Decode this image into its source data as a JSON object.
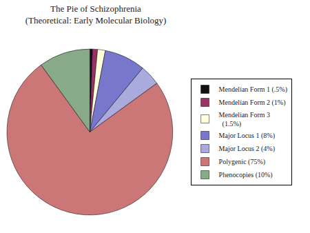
{
  "chart_data": {
    "type": "pie",
    "title": "The Pie of Schizophrenia\n(Theoretical: Early Molecular Biology)",
    "categories": [
      "Mendelian Form 1 (.5%)",
      "Mendelian Form 2 (1%)",
      "Mendelian Form 3\n  (1.5%)",
      "Major Locus 1 (8%)",
      "Major Locus 2 (4%)",
      "Polygenic (75%)",
      "Phenocopies (10%)"
    ],
    "values": [
      0.5,
      1.0,
      1.5,
      8.0,
      4.0,
      75.0,
      10.0
    ],
    "colors": [
      "#111111",
      "#993366",
      "#ffffdd",
      "#7777cc",
      "#aaaadd",
      "#cc7777",
      "#88aa88"
    ],
    "legend": "right"
  }
}
